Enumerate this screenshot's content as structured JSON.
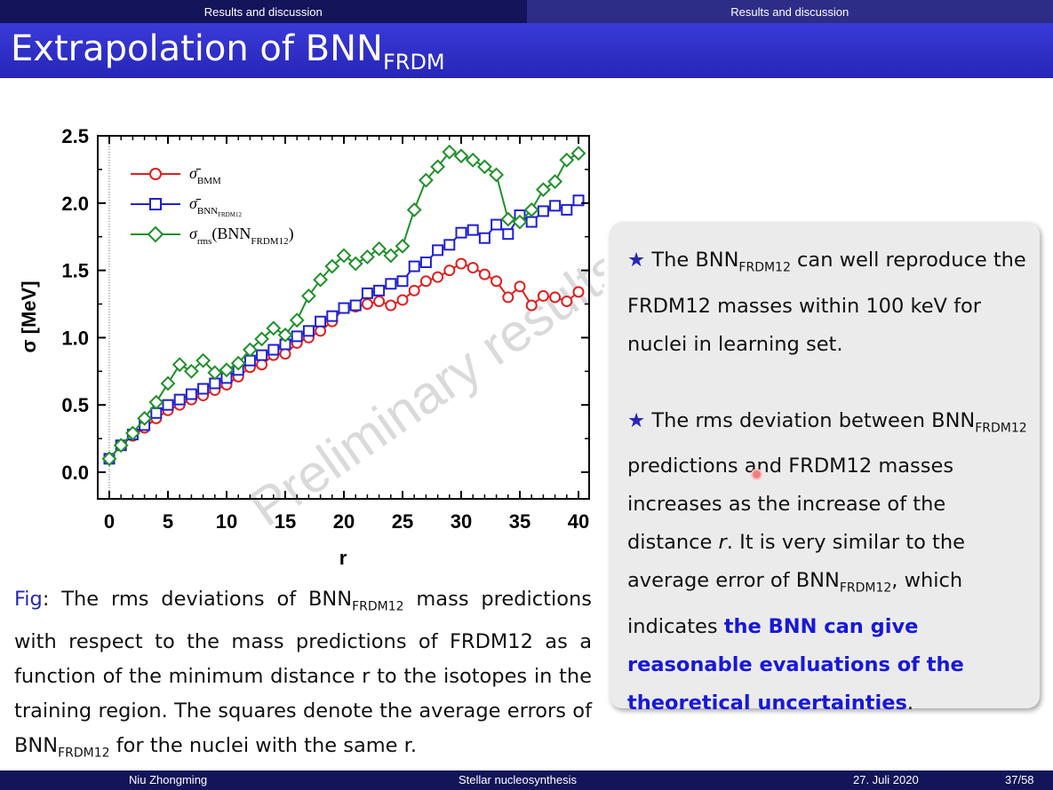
{
  "header": {
    "section_left": "Results and discussion",
    "section_right": "Results and discussion"
  },
  "slide": {
    "title_main": "Extrapolation of BNN",
    "title_sub": "FRDM"
  },
  "watermark": "Preliminary results",
  "chart_data": {
    "type": "line",
    "xlabel": "r",
    "ylabel": "σ [MeV]",
    "xlim": [
      -1,
      41
    ],
    "ylim": [
      -0.2,
      2.5
    ],
    "x_ticks": [
      0,
      5,
      10,
      15,
      20,
      25,
      30,
      35,
      40
    ],
    "x_tick_labels": [
      "0",
      "5",
      "10",
      "15",
      "20",
      "25",
      "30",
      "35",
      "40"
    ],
    "y_ticks": [
      0.0,
      0.5,
      1.0,
      1.5,
      2.0,
      2.5
    ],
    "y_tick_labels": [
      "0.0",
      "0.5",
      "1.0",
      "1.5",
      "2.0",
      "2.5"
    ],
    "legend_position": "top-left",
    "x": [
      0,
      1,
      2,
      3,
      4,
      5,
      6,
      7,
      8,
      9,
      10,
      11,
      12,
      13,
      14,
      15,
      16,
      17,
      18,
      19,
      20,
      21,
      22,
      23,
      24,
      25,
      26,
      27,
      28,
      29,
      30,
      31,
      32,
      33,
      34,
      35,
      36,
      37,
      38,
      39,
      40
    ],
    "series": [
      {
        "legend_main": "σ̄",
        "legend_sub": "BMM",
        "marker": "circle",
        "color": "#e02020",
        "values": [
          0.1,
          0.2,
          0.27,
          0.33,
          0.4,
          0.46,
          0.5,
          0.54,
          0.57,
          0.61,
          0.65,
          0.71,
          0.78,
          0.8,
          0.87,
          0.88,
          0.96,
          1.0,
          1.05,
          1.12,
          1.22,
          1.23,
          1.25,
          1.27,
          1.24,
          1.28,
          1.35,
          1.42,
          1.45,
          1.5,
          1.55,
          1.52,
          1.47,
          1.42,
          1.3,
          1.38,
          1.24,
          1.31,
          1.3,
          1.27,
          1.34
        ]
      },
      {
        "legend_main": "σ̄",
        "legend_sub": "BNN",
        "legend_subsub": "FRDM12",
        "marker": "square",
        "color": "#2020d0",
        "values": [
          0.1,
          0.2,
          0.28,
          0.35,
          0.44,
          0.5,
          0.54,
          0.58,
          0.62,
          0.66,
          0.7,
          0.76,
          0.83,
          0.87,
          0.91,
          0.95,
          1.01,
          1.05,
          1.12,
          1.16,
          1.22,
          1.24,
          1.33,
          1.35,
          1.4,
          1.42,
          1.53,
          1.56,
          1.65,
          1.69,
          1.78,
          1.8,
          1.74,
          1.84,
          1.77,
          1.91,
          1.86,
          1.94,
          1.98,
          1.95,
          2.02
        ]
      },
      {
        "legend_main": "σ",
        "legend_sub": "rms",
        "legend_paren": "(BNN",
        "legend_paren_sub": "FRDM12",
        "legend_close": ")",
        "marker": "diamond",
        "color": "#20902a",
        "values": [
          0.1,
          0.2,
          0.29,
          0.4,
          0.52,
          0.66,
          0.8,
          0.75,
          0.83,
          0.74,
          0.76,
          0.81,
          0.91,
          0.99,
          1.07,
          1.02,
          1.13,
          1.31,
          1.43,
          1.53,
          1.61,
          1.55,
          1.6,
          1.66,
          1.61,
          1.68,
          1.95,
          2.17,
          2.27,
          2.38,
          2.35,
          2.32,
          2.27,
          2.21,
          1.88,
          1.86,
          1.95,
          2.1,
          2.16,
          2.32,
          2.37
        ]
      }
    ]
  },
  "caption": {
    "fig_label": "Fig",
    "p1": ": The rms deviations of BNN",
    "s1": "FRDM12",
    "p2": " mass predictions with respect to the mass predictions of FRDM12 as a function of the minimum distance r to the isotopes in the training region. The squares denote the average errors of BNN",
    "s2": "FRDM12",
    "p3": " for the nuclei with the same r."
  },
  "bullets": {
    "star": "★",
    "b1_a": " The BNN",
    "b1_sub": "FRDM12",
    "b1_b": " can well reproduce the FRDM12 masses within 100 keV for nuclei in learning set.",
    "b2_a": " The rms deviation between BNN",
    "b2_sub1": "FRDM12",
    "b2_b": " predictions and FRDM12 masses increases as the increase of the distance ",
    "b2_r": "r",
    "b2_c": ". It is very similar to the average error of BNN",
    "b2_sub2": "FRDM12",
    "b2_d": ", which indicates ",
    "b2_hl": "the BNN can give reasonable evaluations of the theoretical uncertainties",
    "b2_end": "."
  },
  "footer": {
    "author": "Niu Zhongming",
    "talk": "Stellar nucleosynthesis",
    "date": "27. Juli 2020",
    "page": "37/58"
  }
}
